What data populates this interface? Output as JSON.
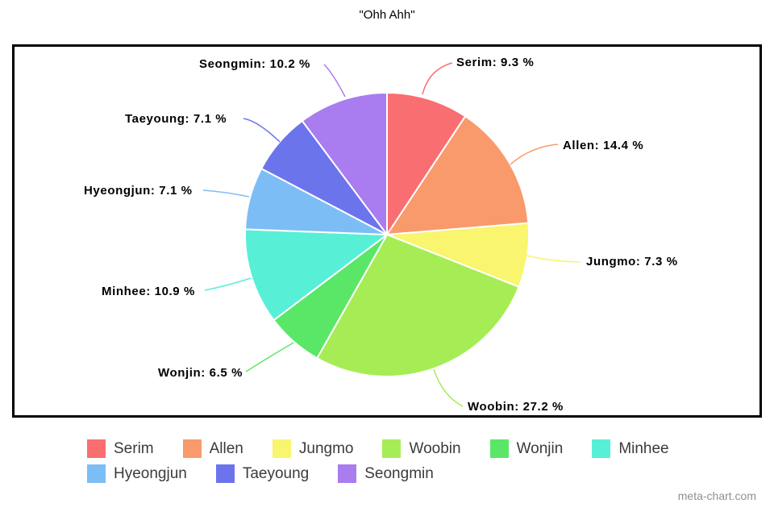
{
  "title": "\"Ohh Ahh\"",
  "watermark": "meta-chart.com",
  "chart_data": {
    "type": "pie",
    "title": "\"Ohh Ahh\"",
    "unit": "%",
    "label_format": "{name}: {value} %",
    "legend_position": "bottom",
    "categories": [
      "Serim",
      "Allen",
      "Jungmo",
      "Woobin",
      "Wonjin",
      "Minhee",
      "Hyeongjun",
      "Taeyoung",
      "Seongmin"
    ],
    "values": [
      9.3,
      14.4,
      7.3,
      27.2,
      6.5,
      10.9,
      7.1,
      7.1,
      10.2
    ],
    "colors": [
      "#F86E71",
      "#F99A6C",
      "#F9F56E",
      "#A6ED55",
      "#5AE768",
      "#58EFD7",
      "#7DBDF5",
      "#6C74EC",
      "#A97CEF"
    ],
    "slice_border_color": "#FFFFFF",
    "start_angle_deg": 0,
    "direction": "clockwise"
  }
}
